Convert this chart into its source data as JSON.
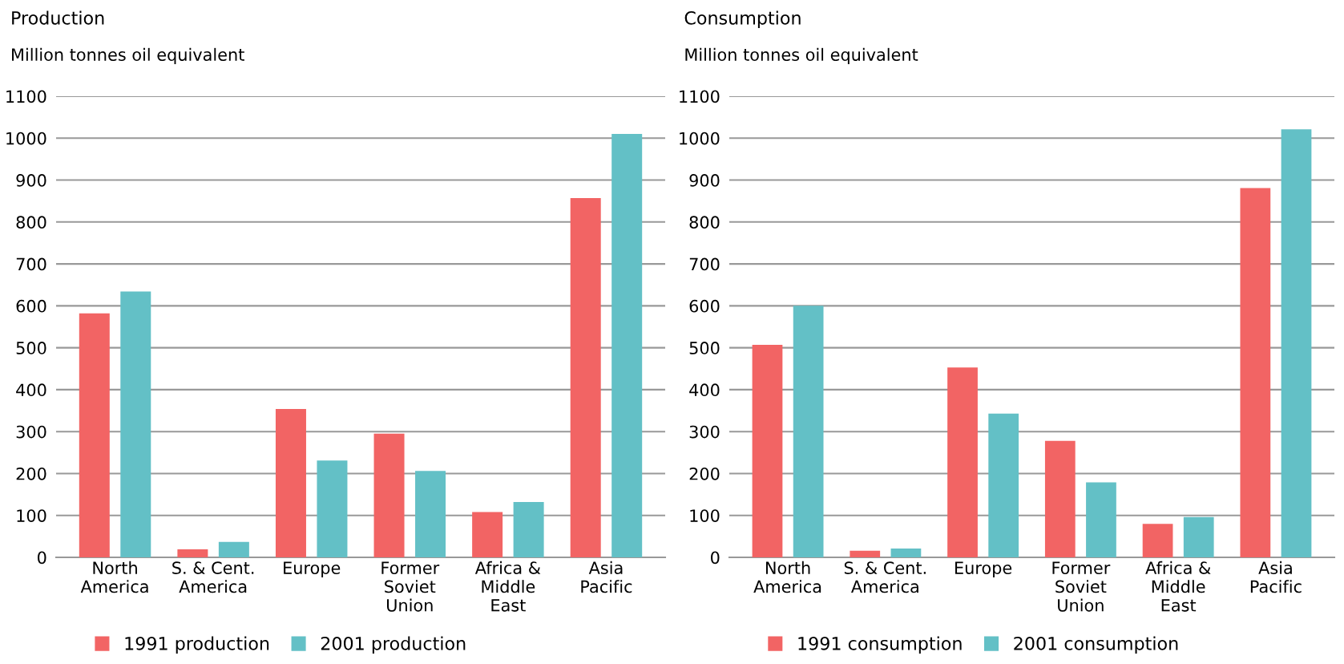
{
  "chart_data": [
    {
      "type": "bar",
      "title": "Production",
      "subtitle": "Million tonnes oil equivalent",
      "categories": [
        "North\nAmerica",
        "S. & Cent.\nAmerica",
        "Europe",
        "Former\nSoviet\nUnion",
        "Africa &\nMiddle\nEast",
        "Asia\nPacific"
      ],
      "series": [
        {
          "name": "1991 production",
          "color": "#f26464",
          "values": [
            582,
            19,
            354,
            295,
            108,
            857
          ]
        },
        {
          "name": "2001 production",
          "color": "#63c0c6",
          "values": [
            634,
            37,
            231,
            206,
            132,
            1010
          ]
        }
      ],
      "ylim": [
        0,
        1100
      ],
      "yticks": [
        0,
        100,
        200,
        300,
        400,
        500,
        600,
        700,
        800,
        900,
        1000,
        1100
      ],
      "grid": "y",
      "legend": "bottom left"
    },
    {
      "type": "bar",
      "title": "Consumption",
      "subtitle": "Million tonnes oil equivalent",
      "categories": [
        "North\nAmerica",
        "S. & Cent.\nAmerica",
        "Europe",
        "Former\nSoviet\nUnion",
        "Africa &\nMiddle\nEast",
        "Asia\nPacific"
      ],
      "series": [
        {
          "name": "1991 consumption",
          "color": "#f26464",
          "values": [
            507,
            16,
            453,
            278,
            80,
            881
          ]
        },
        {
          "name": "2001 consumption",
          "color": "#63c0c6",
          "values": [
            600,
            21,
            343,
            179,
            96,
            1021
          ]
        }
      ],
      "ylim": [
        0,
        1100
      ],
      "yticks": [
        0,
        100,
        200,
        300,
        400,
        500,
        600,
        700,
        800,
        900,
        1000,
        1100
      ],
      "grid": "y",
      "legend": "bottom left"
    }
  ]
}
